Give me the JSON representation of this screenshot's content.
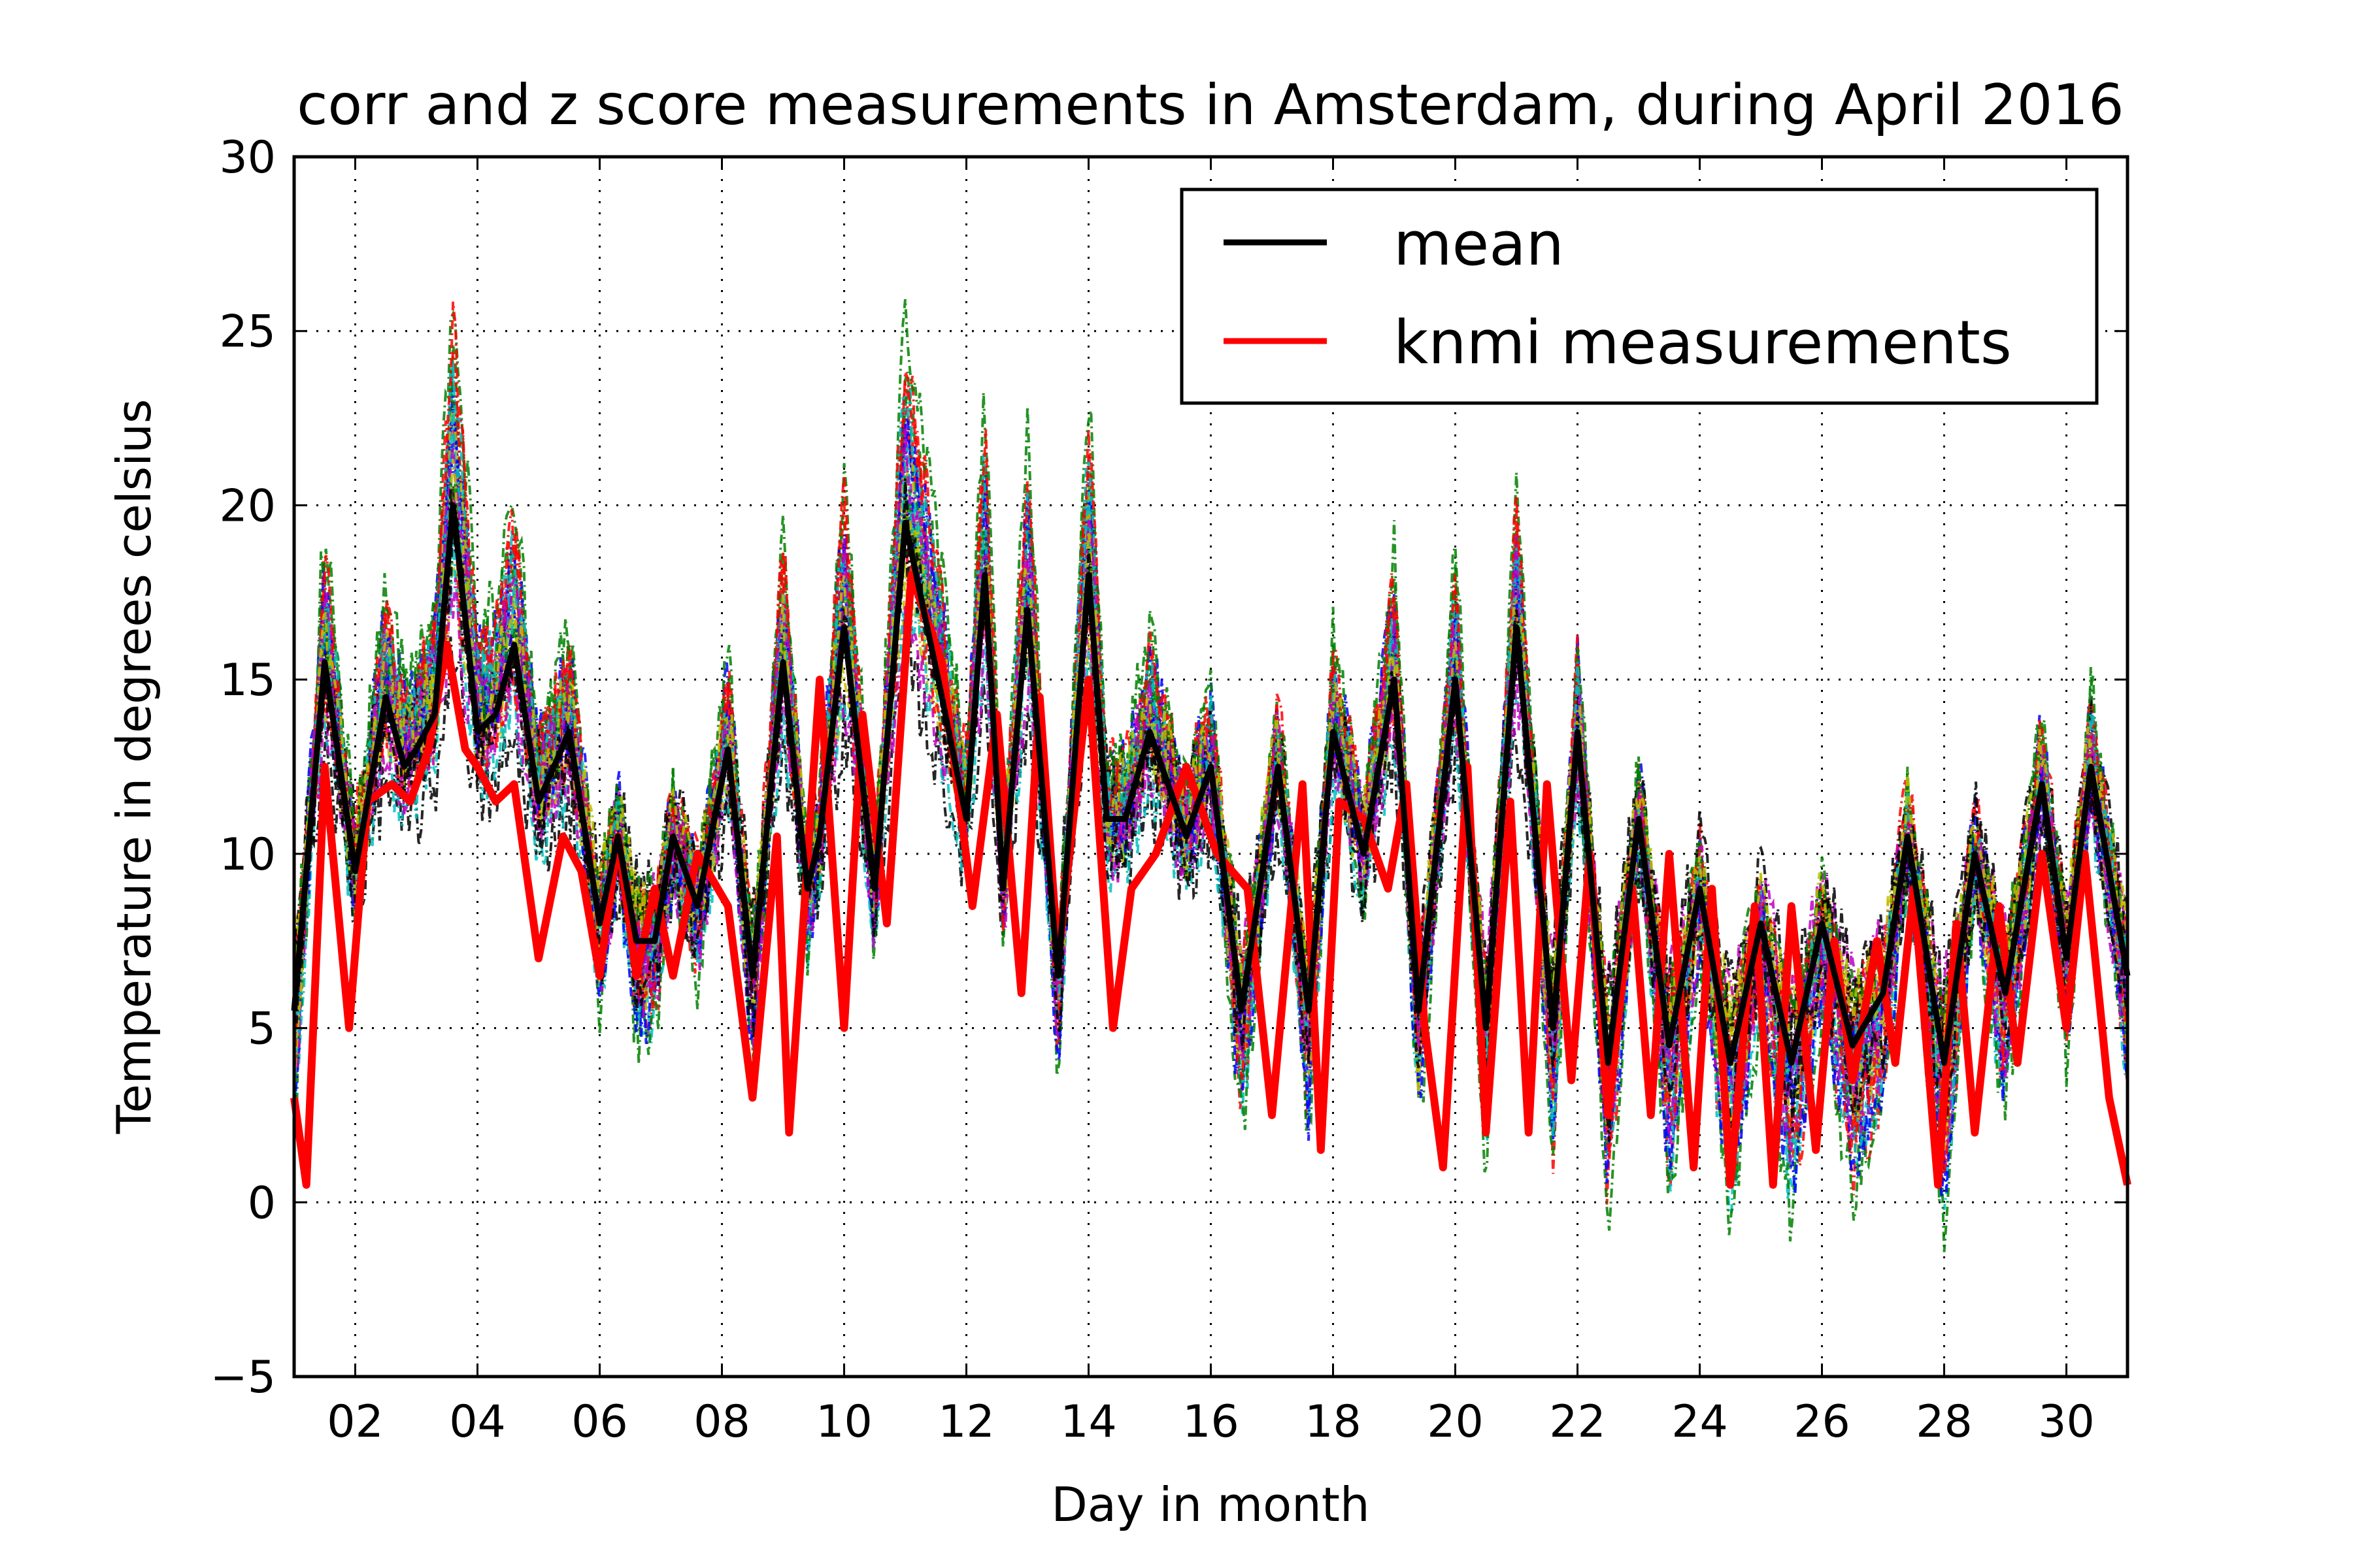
{
  "chart_data": {
    "type": "line",
    "title": "corr and z score measurements in Amsterdam, during April 2016",
    "xlabel": "Day in month",
    "ylabel": "Temperature in degrees celsius",
    "xlim": [
      1,
      31
    ],
    "ylim": [
      -5,
      30
    ],
    "xticks": [
      2,
      4,
      6,
      8,
      10,
      12,
      14,
      16,
      18,
      20,
      22,
      24,
      26,
      28,
      30
    ],
    "xtick_labels": [
      "02",
      "04",
      "06",
      "08",
      "10",
      "12",
      "14",
      "16",
      "18",
      "20",
      "22",
      "24",
      "26",
      "28",
      "30"
    ],
    "yticks": [
      -5,
      0,
      5,
      10,
      15,
      20,
      25,
      30
    ],
    "ytick_labels": [
      "−5",
      "0",
      "5",
      "10",
      "15",
      "20",
      "25",
      "30"
    ],
    "grid": true,
    "legend_position": "upper-right",
    "legend": [
      {
        "label": "mean",
        "color": "#000000"
      },
      {
        "label": "knmi measurements",
        "color": "#ff0000"
      }
    ],
    "sensor_colors": [
      "#0000ff",
      "#008000",
      "#ff0000",
      "#00bfbf",
      "#bf00bf",
      "#bfbf00",
      "#000000"
    ],
    "series": [
      {
        "name": "mean",
        "color": "#000000",
        "x": [
          1.0,
          1.5,
          2.0,
          2.5,
          2.8,
          3.0,
          3.3,
          3.6,
          4.0,
          4.3,
          4.6,
          5.0,
          5.5,
          6.0,
          6.3,
          6.6,
          6.9,
          7.2,
          7.6,
          8.1,
          8.5,
          9.0,
          9.4,
          9.6,
          10.0,
          10.5,
          11.0,
          11.6,
          12.0,
          12.3,
          12.6,
          13.0,
          13.5,
          14.0,
          14.3,
          14.6,
          15.0,
          15.6,
          16.0,
          16.5,
          17.1,
          17.6,
          18.0,
          18.5,
          19.0,
          19.4,
          20.0,
          20.5,
          21.0,
          21.6,
          22.0,
          22.5,
          23.0,
          23.5,
          24.0,
          24.5,
          25.0,
          25.5,
          26.0,
          26.5,
          27.0,
          27.4,
          28.0,
          28.5,
          29.0,
          29.6,
          30.0,
          30.4,
          31.0
        ],
        "y": [
          5.5,
          15.5,
          9.5,
          14.5,
          12.5,
          13.0,
          14.0,
          20.0,
          13.5,
          14.0,
          16.0,
          11.5,
          13.5,
          8.0,
          10.5,
          7.5,
          7.5,
          10.5,
          8.5,
          13.0,
          6.5,
          15.5,
          9.0,
          10.5,
          16.5,
          9.0,
          19.5,
          14.5,
          11.0,
          18.0,
          9.0,
          17.0,
          6.5,
          18.0,
          11.0,
          11.0,
          13.5,
          10.5,
          12.5,
          5.5,
          12.5,
          5.5,
          13.5,
          10.0,
          15.0,
          5.5,
          15.0,
          5.0,
          16.5,
          5.0,
          13.5,
          4.0,
          11.0,
          4.5,
          9.0,
          4.0,
          8.0,
          4.0,
          8.0,
          4.5,
          6.0,
          10.5,
          4.0,
          10.0,
          6.0,
          12.0,
          7.0,
          12.5,
          6.5
        ]
      },
      {
        "name": "knmi measurements",
        "color": "#ff0000",
        "x": [
          1.0,
          1.2,
          1.5,
          1.9,
          2.2,
          2.6,
          2.9,
          3.2,
          3.5,
          3.8,
          4.0,
          4.3,
          4.6,
          5.0,
          5.4,
          5.7,
          6.0,
          6.3,
          6.6,
          6.9,
          7.2,
          7.6,
          8.1,
          8.5,
          8.9,
          9.1,
          9.6,
          10.0,
          10.3,
          10.7,
          11.1,
          11.6,
          12.1,
          12.5,
          12.9,
          13.2,
          13.5,
          14.0,
          14.4,
          14.7,
          15.1,
          15.6,
          16.1,
          16.6,
          17.0,
          17.5,
          17.8,
          18.1,
          18.5,
          18.9,
          19.2,
          19.5,
          19.8,
          20.2,
          20.5,
          20.9,
          21.2,
          21.5,
          21.9,
          22.2,
          22.5,
          22.9,
          23.2,
          23.5,
          23.9,
          24.2,
          24.5,
          24.9,
          25.2,
          25.5,
          25.9,
          26.2,
          26.5,
          26.9,
          27.2,
          27.5,
          27.9,
          28.2,
          28.5,
          28.9,
          29.2,
          29.6,
          30.0,
          30.3,
          30.7,
          31.0
        ],
        "y": [
          3.0,
          0.5,
          12.5,
          5.0,
          11.5,
          12.0,
          11.5,
          13.0,
          16.0,
          13.0,
          12.5,
          11.5,
          12.0,
          7.0,
          10.5,
          9.5,
          6.5,
          10.5,
          6.5,
          9.0,
          6.5,
          10.0,
          8.5,
          3.0,
          10.5,
          2.0,
          15.0,
          5.0,
          14.0,
          8.0,
          18.0,
          15.5,
          8.5,
          14.0,
          6.0,
          14.5,
          7.0,
          15.0,
          5.0,
          9.0,
          10.0,
          12.5,
          10.0,
          9.0,
          2.5,
          12.0,
          1.5,
          11.5,
          11.0,
          9.0,
          12.0,
          5.0,
          1.0,
          12.5,
          2.0,
          11.5,
          2.0,
          12.0,
          3.5,
          10.0,
          2.5,
          9.0,
          2.5,
          10.0,
          1.0,
          9.0,
          0.5,
          8.5,
          0.5,
          8.5,
          1.5,
          7.5,
          3.5,
          7.5,
          4.0,
          9.0,
          0.5,
          8.0,
          2.0,
          8.5,
          4.0,
          10.0,
          5.0,
          10.0,
          3.0,
          0.5
        ]
      }
    ]
  }
}
